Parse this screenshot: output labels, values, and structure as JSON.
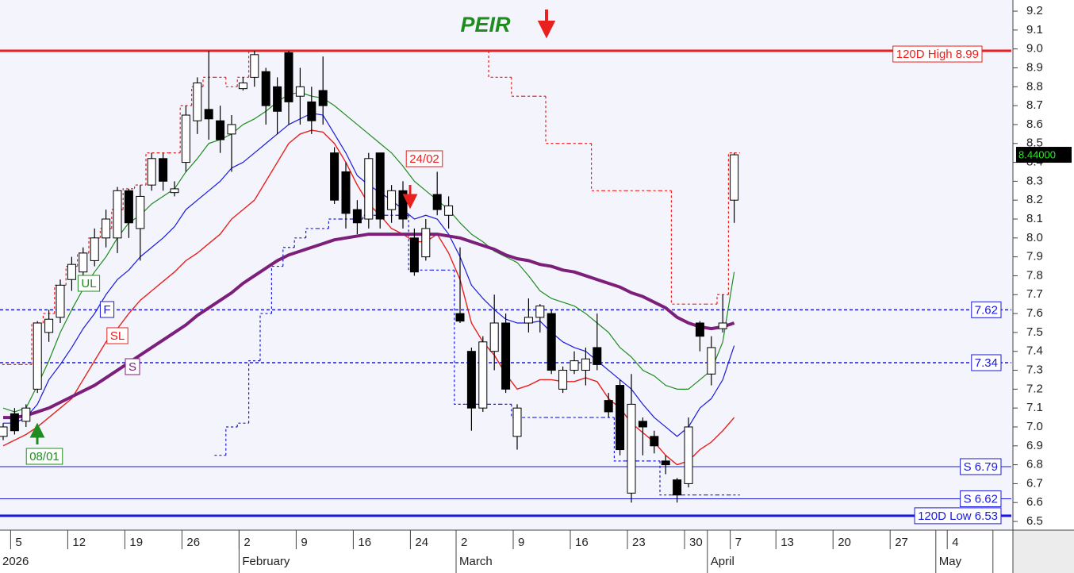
{
  "chart_data": {
    "type": "candlestick",
    "title": "PEIR",
    "categories": [
      null,
      "5",
      null,
      null,
      null,
      null,
      "12",
      null,
      null,
      null,
      null,
      "19",
      null,
      null,
      null,
      null,
      "26",
      null,
      null,
      null,
      null,
      "2",
      null,
      null,
      null,
      null,
      "9",
      null,
      null,
      null,
      null,
      "16",
      null,
      null,
      null,
      null,
      "24",
      null,
      null,
      null,
      "2",
      null,
      null,
      null,
      null,
      "9",
      null,
      null,
      null,
      null,
      "16",
      null,
      null,
      null,
      null,
      "23",
      null,
      null,
      null,
      null,
      "30",
      null,
      null,
      null,
      "7",
      null,
      null,
      null,
      "13",
      null,
      null,
      null,
      null,
      "20",
      null,
      null,
      null,
      null,
      "27",
      null,
      null,
      null,
      null,
      "4",
      null,
      null,
      null,
      null
    ],
    "months": [
      "2026",
      null,
      null,
      null,
      null,
      null,
      null,
      null,
      null,
      null,
      null,
      null,
      null,
      null,
      null,
      null,
      null,
      null,
      null,
      null,
      null,
      "February",
      null,
      null,
      null,
      null,
      null,
      null,
      null,
      null,
      null,
      null,
      null,
      null,
      null,
      null,
      null,
      null,
      null,
      null,
      "March",
      null,
      null,
      null,
      null,
      null,
      null,
      null,
      null,
      null,
      null,
      null,
      null,
      null,
      null,
      null,
      null,
      null,
      null,
      null,
      null,
      null,
      "April",
      null,
      null,
      null,
      null,
      null,
      null,
      null,
      null,
      null,
      null,
      null,
      null,
      null,
      null,
      null,
      null,
      null,
      null,
      null,
      "May",
      null,
      null,
      null,
      null
    ],
    "open": [
      6.95,
      7.07,
      7.03,
      7.2,
      7.5,
      7.58,
      7.78,
      7.82,
      7.88,
      8.0,
      8.0,
      8.25,
      8.05,
      8.28,
      8.42,
      8.24,
      8.4,
      8.62,
      8.68,
      8.62,
      8.55,
      8.79,
      8.85,
      8.88,
      8.8,
      8.98,
      8.75,
      8.72,
      8.78,
      8.45,
      8.35,
      8.15,
      8.1,
      8.45,
      8.15,
      8.25,
      8.0,
      7.9,
      8.23,
      8.12,
      7.6,
      7.4,
      7.1,
      7.4,
      7.55,
      6.95,
      7.55,
      7.58,
      7.6,
      7.2,
      7.3,
      7.3,
      7.42,
      7.14,
      7.22,
      6.65,
      7.03,
      6.95,
      6.82,
      6.72,
      6.7,
      7.55,
      7.28,
      7.52,
      8.2,
      null,
      null,
      null,
      null,
      null,
      null,
      null,
      null,
      null,
      null,
      null,
      null,
      null,
      null,
      null,
      null,
      null,
      null,
      null,
      null,
      null,
      null,
      null
    ],
    "high": [
      7.02,
      7.1,
      7.12,
      7.56,
      7.62,
      7.78,
      7.9,
      7.95,
      8.05,
      8.15,
      8.27,
      8.26,
      8.28,
      8.45,
      8.45,
      8.3,
      8.7,
      8.85,
      8.99,
      8.7,
      8.65,
      8.85,
      8.99,
      8.9,
      8.85,
      8.99,
      8.9,
      8.8,
      8.96,
      8.48,
      8.4,
      8.2,
      8.45,
      8.45,
      8.28,
      8.3,
      8.05,
      8.1,
      8.35,
      8.22,
      7.95,
      7.42,
      7.48,
      7.7,
      7.6,
      7.12,
      7.68,
      7.65,
      7.62,
      7.32,
      7.4,
      7.42,
      7.6,
      7.18,
      7.25,
      7.28,
      7.05,
      6.98,
      6.85,
      6.73,
      7.05,
      7.56,
      7.48,
      7.7,
      8.45,
      null,
      null,
      null,
      null,
      null,
      null,
      null,
      null,
      null,
      null,
      null,
      null,
      null,
      null,
      null,
      null,
      null,
      null,
      null,
      null,
      null,
      null,
      null
    ],
    "low": [
      6.93,
      6.96,
      7.0,
      7.18,
      7.45,
      7.55,
      7.72,
      7.78,
      7.85,
      7.95,
      7.92,
      8.0,
      7.88,
      8.25,
      8.25,
      8.22,
      8.35,
      8.55,
      8.52,
      8.45,
      8.35,
      8.78,
      8.8,
      8.6,
      8.55,
      8.6,
      8.6,
      8.55,
      8.6,
      8.18,
      8.05,
      8.02,
      8.05,
      8.05,
      8.08,
      8.05,
      7.8,
      7.88,
      8.12,
      8.05,
      7.55,
      6.98,
      7.08,
      7.3,
      7.18,
      6.88,
      7.5,
      7.5,
      7.28,
      7.18,
      7.28,
      7.22,
      7.3,
      7.05,
      6.85,
      6.6,
      6.85,
      6.86,
      6.75,
      6.6,
      6.68,
      7.4,
      7.22,
      7.5,
      8.08,
      null,
      null,
      null,
      null,
      null,
      null,
      null,
      null,
      null,
      null,
      null,
      null,
      null,
      null,
      null,
      null,
      null,
      null,
      null,
      null,
      null,
      null,
      null
    ],
    "close": [
      7.0,
      6.98,
      7.1,
      7.55,
      7.57,
      7.75,
      7.86,
      7.92,
      8.0,
      8.1,
      8.25,
      8.08,
      8.22,
      8.42,
      8.3,
      8.26,
      8.65,
      8.82,
      8.63,
      8.52,
      8.6,
      8.82,
      8.97,
      8.7,
      8.67,
      8.72,
      8.8,
      8.62,
      8.7,
      8.2,
      8.13,
      8.08,
      8.42,
      8.1,
      8.25,
      8.1,
      7.82,
      8.05,
      8.15,
      8.17,
      7.56,
      7.1,
      7.45,
      7.55,
      7.2,
      7.1,
      7.58,
      7.64,
      7.3,
      7.3,
      7.35,
      7.36,
      7.33,
      7.08,
      6.88,
      7.12,
      7.0,
      6.9,
      6.8,
      6.64,
      7.0,
      7.48,
      7.42,
      7.55,
      8.44,
      null,
      null,
      null,
      null,
      null,
      null,
      null,
      null,
      null,
      null,
      null,
      null,
      null,
      null,
      null,
      null,
      null,
      null,
      null,
      null,
      null,
      null,
      null
    ],
    "series": [
      {
        "name": "UL",
        "color": "#1e8c1e",
        "values": [
          7.1,
          7.08,
          7.1,
          7.22,
          7.35,
          7.5,
          7.62,
          7.73,
          7.82,
          7.9,
          8.0,
          8.08,
          8.12,
          8.18,
          8.22,
          8.26,
          8.35,
          8.42,
          8.5,
          8.52,
          8.55,
          8.6,
          8.63,
          8.67,
          8.72,
          8.76,
          8.77,
          8.75,
          8.74,
          8.7,
          8.65,
          8.6,
          8.55,
          8.5,
          8.45,
          8.38,
          8.3,
          8.25,
          8.2,
          8.15,
          8.08,
          8.02,
          7.98,
          7.93,
          7.9,
          7.87,
          7.8,
          7.72,
          7.68,
          7.66,
          7.64,
          7.6,
          7.55,
          7.5,
          7.42,
          7.37,
          7.3,
          7.27,
          7.22,
          7.2,
          7.2,
          7.25,
          7.3,
          7.45,
          7.82,
          null,
          null,
          null,
          null,
          null,
          null,
          null,
          null,
          null,
          null,
          null,
          null,
          null,
          null,
          null,
          null,
          null,
          null,
          null,
          null,
          null,
          null,
          null
        ]
      },
      {
        "name": "F",
        "color": "#1a1adc",
        "values": [
          7.02,
          7.02,
          7.05,
          7.12,
          7.25,
          7.33,
          7.42,
          7.52,
          7.6,
          7.7,
          7.78,
          7.83,
          7.9,
          7.95,
          8.0,
          8.06,
          8.15,
          8.2,
          8.25,
          8.3,
          8.37,
          8.4,
          8.45,
          8.5,
          8.55,
          8.6,
          8.63,
          8.66,
          8.65,
          8.55,
          8.45,
          8.33,
          8.28,
          8.24,
          8.2,
          8.15,
          8.1,
          8.12,
          8.1,
          8.02,
          7.9,
          7.75,
          7.68,
          7.62,
          7.57,
          7.55,
          7.55,
          7.56,
          7.5,
          7.45,
          7.42,
          7.4,
          7.35,
          7.3,
          7.25,
          7.2,
          7.12,
          7.05,
          7.0,
          6.95,
          7.0,
          7.1,
          7.15,
          7.25,
          7.43,
          null,
          null,
          null,
          null,
          null,
          null,
          null,
          null,
          null,
          null,
          null,
          null,
          null,
          null,
          null,
          null,
          null,
          null,
          null,
          null,
          null,
          null,
          null
        ]
      },
      {
        "name": "SL",
        "color": "#e8201e",
        "values": [
          6.9,
          6.93,
          6.96,
          7.0,
          7.05,
          7.1,
          7.15,
          7.25,
          7.35,
          7.45,
          7.52,
          7.6,
          7.67,
          7.72,
          7.77,
          7.82,
          7.88,
          7.92,
          7.97,
          8.02,
          8.1,
          8.15,
          8.2,
          8.3,
          8.4,
          8.5,
          8.55,
          8.57,
          8.56,
          8.5,
          8.4,
          8.28,
          8.18,
          8.12,
          8.05,
          8.02,
          7.98,
          7.98,
          8.02,
          7.92,
          7.78,
          7.55,
          7.45,
          7.38,
          7.28,
          7.2,
          7.22,
          7.25,
          7.25,
          7.24,
          7.24,
          7.26,
          7.24,
          7.15,
          7.1,
          7.02,
          6.97,
          6.92,
          6.85,
          6.8,
          6.82,
          6.88,
          6.92,
          6.98,
          7.05,
          null,
          null,
          null,
          null,
          null,
          null,
          null,
          null,
          null,
          null,
          null,
          null,
          null,
          null,
          null,
          null,
          null,
          null,
          null,
          null,
          null,
          null,
          null
        ]
      },
      {
        "name": "S",
        "color": "#7b1f7b",
        "values": [
          7.05,
          7.05,
          7.06,
          7.08,
          7.1,
          7.13,
          7.16,
          7.19,
          7.22,
          7.26,
          7.3,
          7.34,
          7.38,
          7.42,
          7.46,
          7.5,
          7.54,
          7.59,
          7.63,
          7.67,
          7.71,
          7.76,
          7.8,
          7.84,
          7.88,
          7.91,
          7.93,
          7.95,
          7.97,
          7.99,
          8.0,
          8.01,
          8.02,
          8.02,
          8.02,
          8.02,
          8.02,
          8.02,
          8.02,
          8.01,
          8.0,
          7.98,
          7.96,
          7.94,
          7.91,
          7.89,
          7.88,
          7.86,
          7.85,
          7.83,
          7.82,
          7.8,
          7.78,
          7.76,
          7.74,
          7.71,
          7.69,
          7.66,
          7.63,
          7.58,
          7.55,
          7.53,
          7.52,
          7.53,
          7.55,
          null,
          null,
          null,
          null,
          null,
          null,
          null,
          null,
          null,
          null,
          null,
          null,
          null,
          null,
          null,
          null,
          null,
          null,
          null,
          null,
          null,
          null,
          null
        ]
      }
    ],
    "stops": [
      {
        "color": "#e8201e",
        "values": [
          7.33,
          7.33,
          7.33,
          7.55,
          7.6,
          7.75,
          7.85,
          7.92,
          8.0,
          8.05,
          8.15,
          8.26,
          8.28,
          8.45,
          8.45,
          8.45,
          8.7,
          8.8,
          8.85,
          8.85,
          8.8,
          8.85,
          8.99,
          8.99,
          8.99,
          8.99,
          8.99,
          8.99,
          8.99,
          8.99,
          8.99,
          8.99,
          8.99,
          8.99,
          8.99,
          8.99,
          8.99,
          8.99,
          8.99,
          8.99,
          8.99,
          8.99,
          8.99,
          8.85,
          8.85,
          8.75,
          8.75,
          8.75,
          8.5,
          8.5,
          8.5,
          8.5,
          8.25,
          8.25,
          8.25,
          8.25,
          8.25,
          8.25,
          8.25,
          7.65,
          7.65,
          7.65,
          7.65,
          7.7,
          8.45,
          null,
          null,
          null,
          null,
          null,
          null,
          null,
          null,
          null,
          null,
          null,
          null,
          null,
          null,
          null,
          null,
          null,
          null,
          null,
          null,
          null,
          null,
          null
        ]
      },
      {
        "color": "#1a1adc",
        "values": [
          null,
          null,
          null,
          null,
          null,
          null,
          null,
          null,
          null,
          null,
          null,
          null,
          null,
          null,
          null,
          null,
          null,
          null,
          null,
          6.85,
          7.0,
          7.02,
          7.35,
          7.6,
          7.85,
          7.95,
          8.0,
          8.05,
          8.05,
          8.1,
          8.1,
          8.1,
          8.12,
          8.12,
          8.12,
          8.12,
          7.83,
          7.83,
          7.83,
          7.83,
          7.12,
          7.12,
          7.12,
          7.12,
          7.12,
          7.05,
          7.05,
          7.05,
          7.05,
          7.05,
          7.05,
          7.05,
          7.05,
          7.05,
          6.82,
          6.82,
          6.82,
          6.82,
          6.64,
          6.64,
          6.64,
          6.64,
          6.64,
          6.64,
          6.64,
          null,
          null,
          null,
          null,
          null,
          null,
          null,
          null,
          null,
          null,
          null,
          null,
          null,
          null,
          null,
          null,
          null,
          null,
          null,
          null,
          null,
          null,
          null
        ]
      }
    ],
    "levels": [
      {
        "label": "120D High 8.99",
        "value": 8.99,
        "color": "#e8201e",
        "style": "thick"
      },
      {
        "label": "7.62",
        "value": 7.62,
        "color": "#1a1adc",
        "style": "dashed"
      },
      {
        "label": "7.34",
        "value": 7.34,
        "color": "#1a1adc",
        "style": "dashed"
      },
      {
        "label": "S 6.79",
        "value": 6.79,
        "color": "#1a1adc",
        "style": "thin"
      },
      {
        "label": "S 6.62",
        "value": 6.62,
        "color": "#1a1adc",
        "style": "thin"
      },
      {
        "label": "120D Low 6.53",
        "value": 6.53,
        "color": "#1a1adc",
        "style": "thick"
      }
    ],
    "annotations": [
      {
        "text": "24/02",
        "color": "#e8201e"
      },
      {
        "text": "08/01",
        "color": "#1e8c1e"
      }
    ],
    "last_price": {
      "value": 8.44,
      "label": "8.44000"
    },
    "ylim": [
      6.454,
      9.259
    ],
    "yticks": [
      6.5,
      6.6,
      6.7,
      6.8,
      6.9,
      {
        "value": 7,
        "label": "7.0"
      },
      7.1,
      7.2,
      7.3,
      7.4,
      7.5,
      7.6,
      7.7,
      7.8,
      7.9,
      {
        "value": 8,
        "label": "8.0"
      },
      8.1,
      8.2,
      8.3,
      8.4,
      8.5,
      8.6,
      8.7,
      8.8,
      8.9,
      {
        "value": 9,
        "label": "9.0"
      },
      9.1,
      9.2
    ]
  }
}
